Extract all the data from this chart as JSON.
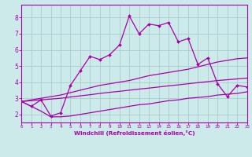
{
  "xlabel": "Windchill (Refroidissement éolien,°C)",
  "bg_color": "#cceaea",
  "line_color": "#aa00aa",
  "grid_color": "#aacccc",
  "x_data": [
    0,
    1,
    2,
    3,
    4,
    5,
    6,
    7,
    8,
    9,
    10,
    11,
    12,
    13,
    14,
    15,
    16,
    17,
    18,
    19,
    20,
    21,
    22,
    23
  ],
  "y_main": [
    2.8,
    2.5,
    2.9,
    1.9,
    2.1,
    3.8,
    4.7,
    5.6,
    5.4,
    5.7,
    6.3,
    8.1,
    7.0,
    7.6,
    7.5,
    7.7,
    6.5,
    6.7,
    5.1,
    5.5,
    3.9,
    3.1,
    3.8,
    3.7
  ],
  "y_upper": [
    2.8,
    2.9,
    3.0,
    3.1,
    3.2,
    3.35,
    3.5,
    3.65,
    3.8,
    3.9,
    4.0,
    4.1,
    4.25,
    4.4,
    4.5,
    4.6,
    4.7,
    4.8,
    4.95,
    5.1,
    5.25,
    5.35,
    5.45,
    5.5
  ],
  "y_mid": [
    2.8,
    2.85,
    2.9,
    2.95,
    3.0,
    3.08,
    3.15,
    3.22,
    3.3,
    3.37,
    3.43,
    3.5,
    3.57,
    3.63,
    3.7,
    3.77,
    3.83,
    3.9,
    3.97,
    4.03,
    4.1,
    4.15,
    4.2,
    4.25
  ],
  "y_lower": [
    2.8,
    2.5,
    2.2,
    1.85,
    1.85,
    1.9,
    2.0,
    2.1,
    2.2,
    2.3,
    2.4,
    2.5,
    2.6,
    2.65,
    2.75,
    2.85,
    2.9,
    3.0,
    3.05,
    3.1,
    3.2,
    3.25,
    3.3,
    3.4
  ],
  "ylim": [
    1.5,
    8.8
  ],
  "xlim": [
    0,
    23
  ],
  "yticks": [
    2,
    3,
    4,
    5,
    6,
    7,
    8
  ],
  "xticks": [
    0,
    1,
    2,
    3,
    4,
    5,
    6,
    7,
    8,
    9,
    10,
    11,
    12,
    13,
    14,
    15,
    16,
    17,
    18,
    19,
    20,
    21,
    22,
    23
  ]
}
